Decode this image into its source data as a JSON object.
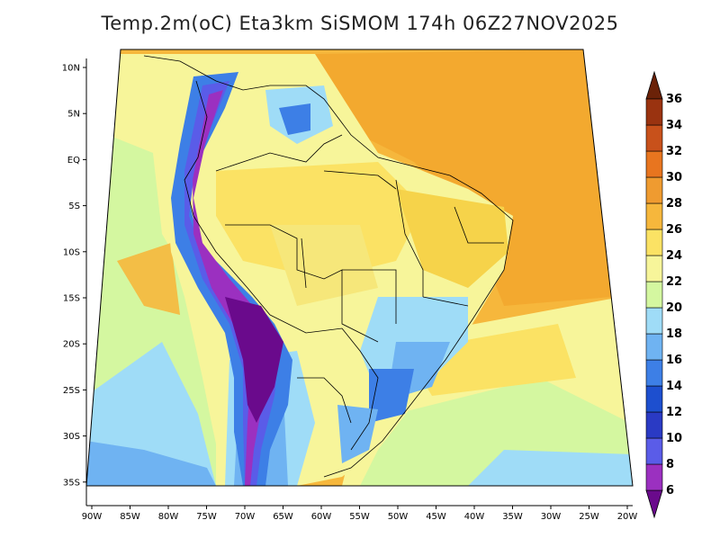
{
  "title": "Temp.2m(oC) Eta3km SiSMOM 174h 06Z27NOV2025",
  "map": {
    "variable": "Temp.2m",
    "units": "oC",
    "model": "Eta3km",
    "lat_ticks": [
      "10N",
      "5N",
      "EQ",
      "5S",
      "10S",
      "15S",
      "20S",
      "25S",
      "30S",
      "35S"
    ],
    "lon_ticks": [
      "90W",
      "85W",
      "80W",
      "75W",
      "70W",
      "65W",
      "60W",
      "55W",
      "50W",
      "45W",
      "40W",
      "35W",
      "30W",
      "25W",
      "20W"
    ]
  },
  "colorbar": {
    "labels": [
      "6",
      "8",
      "10",
      "12",
      "14",
      "16",
      "18",
      "20",
      "22",
      "24",
      "26",
      "28",
      "30",
      "32",
      "34",
      "36"
    ],
    "colors": [
      "#6a0a8c",
      "#9b30c0",
      "#5a5ce8",
      "#2a3ac4",
      "#1d4fcf",
      "#3d7fe6",
      "#6fb3f2",
      "#9fdcf7",
      "#d4f7a0",
      "#f7f59a",
      "#fbe264",
      "#f6b73c",
      "#ef9b30",
      "#e8751f",
      "#c8511b",
      "#9a3310",
      "#6b2208"
    ]
  }
}
